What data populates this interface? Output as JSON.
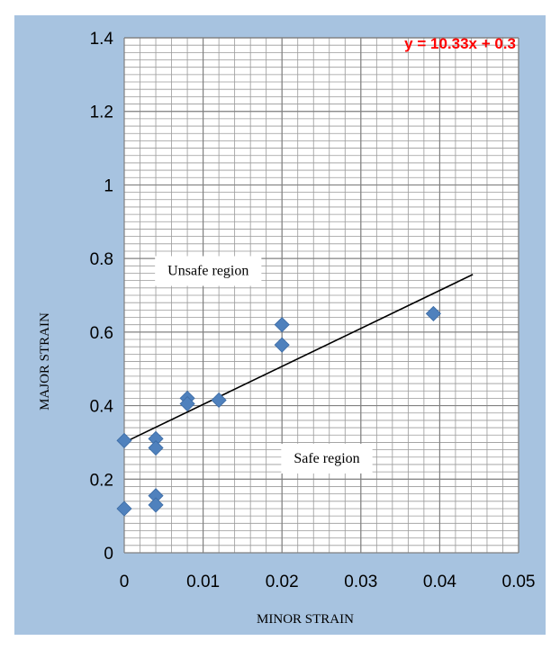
{
  "chart_data": {
    "type": "scatter",
    "title": "",
    "xlabel": "MINOR  STRAIN",
    "ylabel": "MAJOR  STRAIN",
    "xlim": [
      0,
      0.05
    ],
    "ylim": [
      0,
      1.4
    ],
    "x_ticks": [
      "0",
      "0.01",
      "0.02",
      "0.03",
      "0.04",
      "0.05"
    ],
    "y_ticks": [
      "0",
      "0.2",
      "0.4",
      "0.6",
      "0.8",
      "1",
      "1.2",
      "1.4"
    ],
    "x_tick_values": [
      0,
      0.01,
      0.02,
      0.03,
      0.04,
      0.05
    ],
    "y_tick_values": [
      0,
      0.2,
      0.4,
      0.6,
      0.8,
      1.0,
      1.2,
      1.4
    ],
    "grid": true,
    "points": [
      {
        "x": 0,
        "y": 0.305
      },
      {
        "x": 0,
        "y": 0.12
      },
      {
        "x": 0.004,
        "y": 0.31
      },
      {
        "x": 0.004,
        "y": 0.285
      },
      {
        "x": 0.004,
        "y": 0.155
      },
      {
        "x": 0.004,
        "y": 0.13
      },
      {
        "x": 0.008,
        "y": 0.42
      },
      {
        "x": 0.008,
        "y": 0.405
      },
      {
        "x": 0.012,
        "y": 0.415
      },
      {
        "x": 0.02,
        "y": 0.62
      },
      {
        "x": 0.02,
        "y": 0.565
      },
      {
        "x": 0.0392,
        "y": 0.65
      }
    ],
    "trendline": {
      "equation": "y = 10.33x + 0.3",
      "slope": 10.33,
      "intercept": 0.3,
      "x_range": [
        0,
        0.0442
      ]
    },
    "annotations": [
      {
        "text": "Unsafe region",
        "x": 0.0055,
        "y": 0.755
      },
      {
        "text": "Safe region",
        "x": 0.0215,
        "y": 0.245
      }
    ],
    "colors": {
      "marker": "#4f81bd",
      "trendline": "#000000",
      "equation": "#ff0000",
      "background": "#a7c3e0",
      "plot_area": "#ffffff",
      "grid": "#808080"
    }
  }
}
